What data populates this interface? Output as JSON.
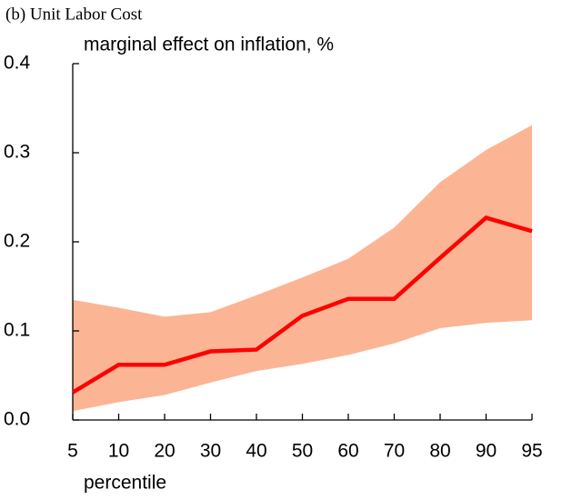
{
  "chart_data": {
    "type": "line",
    "title": "(b) Unit Labor Cost",
    "y_label": "marginal effect on inflation, %",
    "x_label": "percentile",
    "categories": [
      "5",
      "10",
      "20",
      "30",
      "40",
      "50",
      "60",
      "70",
      "80",
      "90",
      "95"
    ],
    "series": [
      {
        "color": "#ff0000",
        "values": [
          0.031,
          0.062,
          0.062,
          0.077,
          0.079,
          0.117,
          0.136,
          0.136,
          0.182,
          0.227,
          0.212
        ]
      }
    ],
    "band": {
      "color": "#fbb594",
      "upper": [
        0.135,
        0.126,
        0.116,
        0.121,
        0.14,
        0.16,
        0.181,
        0.216,
        0.267,
        0.303,
        0.331
      ],
      "lower": [
        0.01,
        0.02,
        0.028,
        0.042,
        0.055,
        0.063,
        0.073,
        0.086,
        0.103,
        0.109,
        0.112
      ]
    },
    "ylim": [
      0,
      0.4
    ],
    "yticks": [
      {
        "value": 0,
        "label": "0.0"
      },
      0.1,
      0.2,
      0.3,
      0.4
    ],
    "grid": false
  }
}
